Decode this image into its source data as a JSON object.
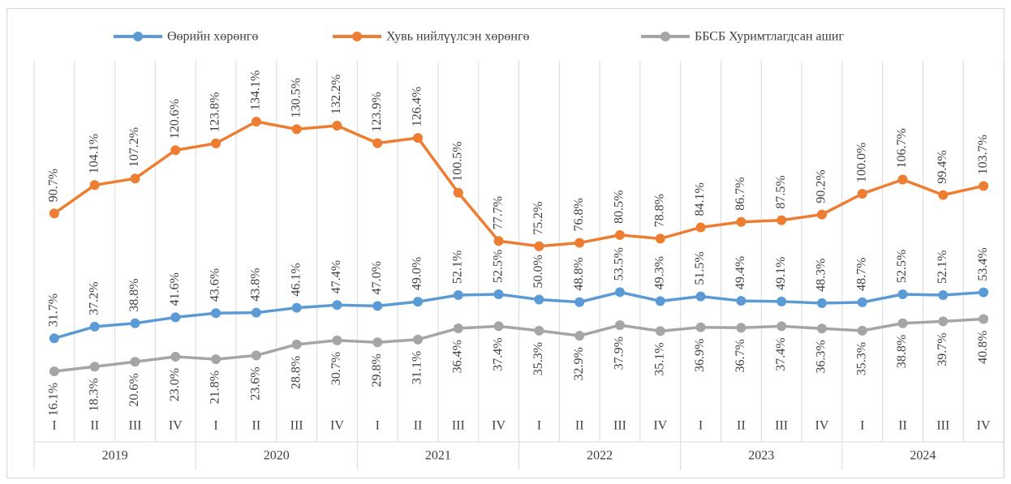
{
  "chart_data": {
    "type": "line",
    "categories": [
      "I",
      "II",
      "III",
      "IV",
      "I",
      "II",
      "III",
      "IV",
      "I",
      "II",
      "III",
      "IV",
      "I",
      "II",
      "III",
      "IV",
      "I",
      "II",
      "III",
      "IV",
      "I",
      "II",
      "III",
      "IV"
    ],
    "years": [
      "2019",
      "2020",
      "2021",
      "2022",
      "2023",
      "2024"
    ],
    "legend": "top",
    "series": [
      {
        "name": "Өөрийн хөрөнгө",
        "color": "#5b9bd5",
        "label_side": "above",
        "values": [
          31.7,
          37.2,
          38.8,
          41.6,
          43.6,
          43.8,
          46.1,
          47.4,
          47.0,
          49.0,
          52.1,
          52.5,
          50.0,
          48.8,
          53.5,
          49.3,
          51.5,
          49.4,
          49.1,
          48.3,
          48.7,
          52.5,
          52.1,
          53.4
        ],
        "value_labels": [
          "31.7%",
          "37.2%",
          "38.8%",
          "41.6%",
          "43.6%",
          "43.8%",
          "46.1%",
          "47.4%",
          "47.0%",
          "49.0%",
          "52.1%",
          "52.5%",
          "50.0%",
          "48.8%",
          "53.5%",
          "49.3%",
          "51.5%",
          "49.4%",
          "49.1%",
          "48.3%",
          "48.7%",
          "52.5%",
          "52.1%",
          "53.4%"
        ]
      },
      {
        "name": "Хувь нийлүүлсэн хөрөнгө",
        "color": "#ed7d31",
        "label_side": "above",
        "values": [
          90.7,
          104.1,
          107.2,
          120.6,
          123.8,
          134.1,
          130.5,
          132.2,
          123.9,
          126.4,
          100.5,
          77.7,
          75.2,
          76.8,
          80.5,
          78.8,
          84.1,
          86.7,
          87.5,
          90.2,
          100.0,
          106.7,
          99.4,
          103.7
        ],
        "value_labels": [
          "90.7%",
          "104.1%",
          "107.2%",
          "120.6%",
          "123.8%",
          "134.1%",
          "130.5%",
          "132.2%",
          "123.9%",
          "126.4%",
          "100.5%",
          "77.7%",
          "75.2%",
          "76.8%",
          "80.5%",
          "78.8%",
          "84.1%",
          "86.7%",
          "87.5%",
          "90.2%",
          "100.0%",
          "106.7%",
          "99.4%",
          "103.7%"
        ]
      },
      {
        "name": "ББСБ Хуримтлагдсан ашиг",
        "color": "#a5a5a5",
        "label_side": "below",
        "values": [
          16.1,
          18.3,
          20.6,
          23.0,
          21.8,
          23.6,
          28.8,
          30.7,
          29.8,
          31.1,
          36.4,
          37.4,
          35.3,
          32.9,
          37.9,
          35.1,
          36.9,
          36.7,
          37.4,
          36.3,
          35.3,
          38.8,
          39.7,
          40.8
        ],
        "value_labels": [
          "16.1%",
          "18.3%",
          "20.6%",
          "23.0%",
          "21.8%",
          "23.6%",
          "28.8%",
          "30.7%",
          "29.8%",
          "31.1%",
          "36.4%",
          "37.4%",
          "35.3%",
          "32.9%",
          "37.9%",
          "35.1%",
          "36.9%",
          "36.7%",
          "37.4%",
          "36.3%",
          "35.3%",
          "38.8%",
          "39.7%",
          "40.8%"
        ]
      }
    ]
  }
}
